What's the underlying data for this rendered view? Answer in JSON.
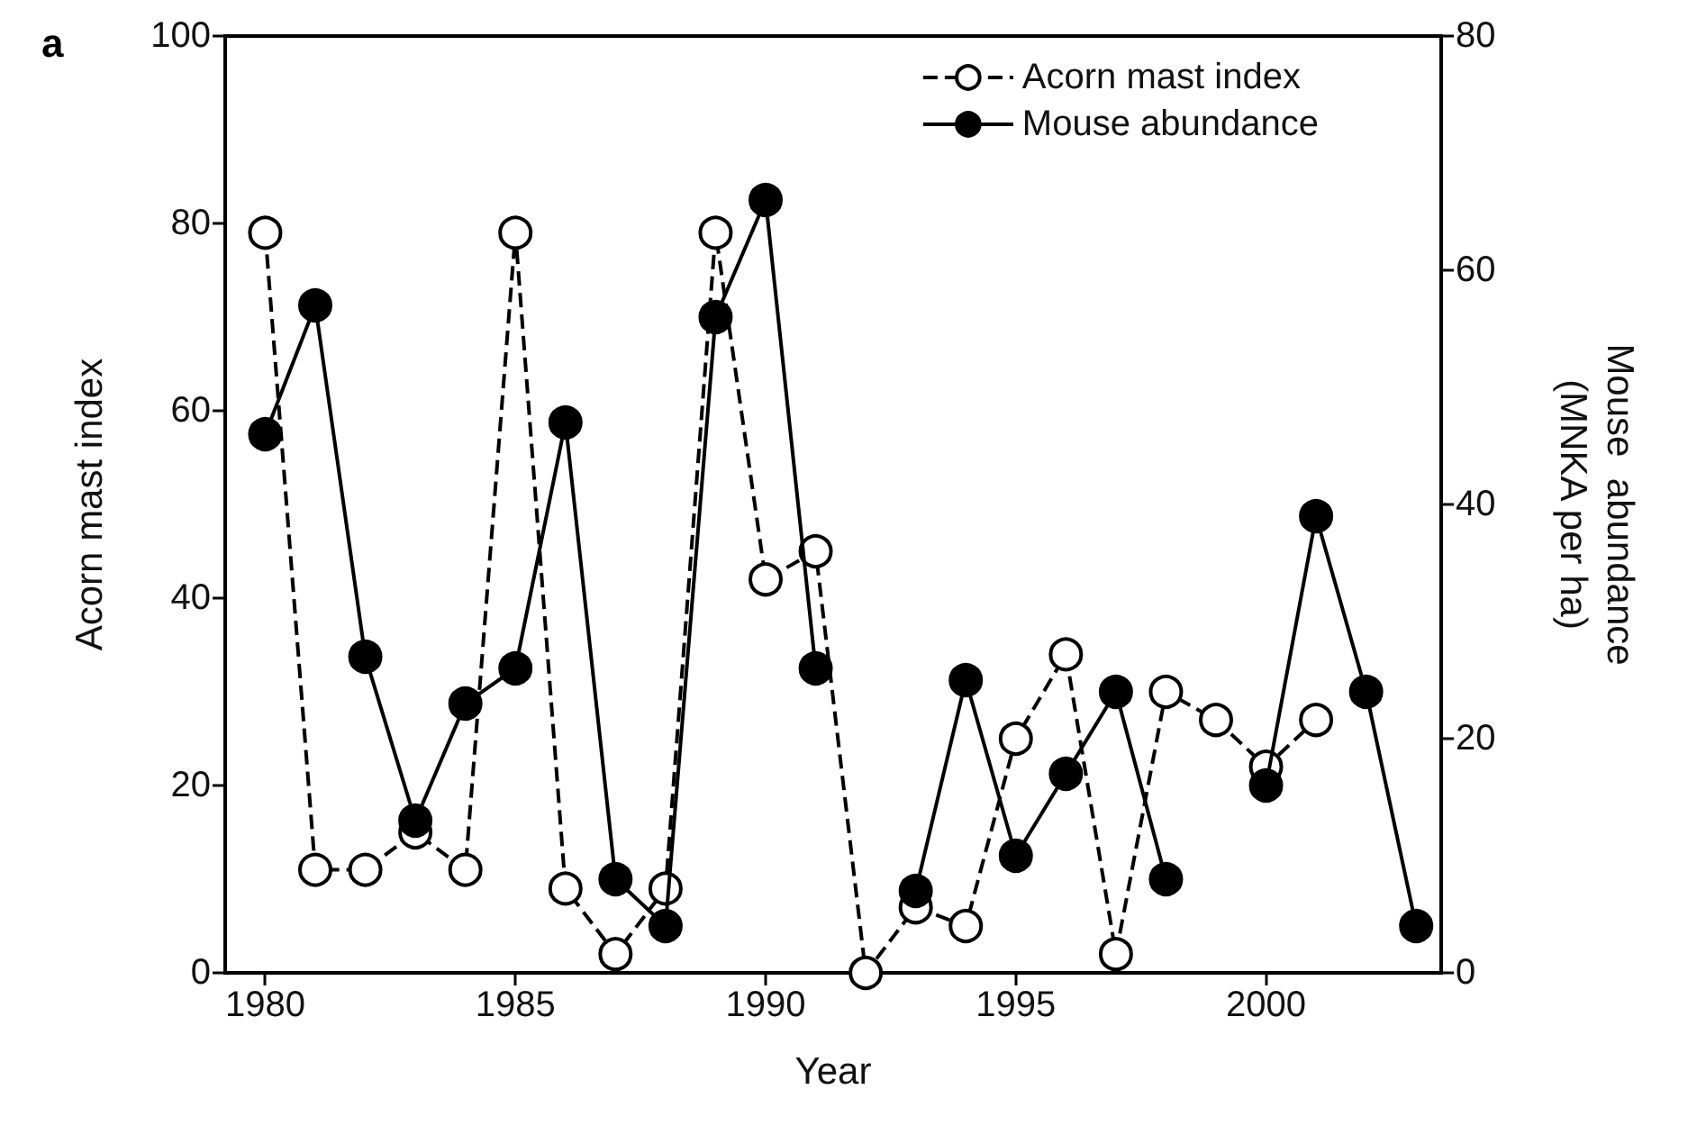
{
  "chart_data": {
    "type": "line",
    "title": "a",
    "xlabel": "Year",
    "ylabel": "Acorn mast index",
    "y2label": "Mouse  abundance\n(MNKA per ha)",
    "xlim": [
      1979.2,
      2003.5
    ],
    "xticks": [
      1980,
      1985,
      1990,
      1995,
      2000
    ],
    "ylim": [
      0,
      100
    ],
    "yticks": [
      0,
      20,
      40,
      60,
      80,
      100
    ],
    "y2lim": [
      0,
      80
    ],
    "y2ticks": [
      0,
      20,
      40,
      60,
      80
    ],
    "grid": false,
    "legend": "top right",
    "marker": "circle",
    "series": [
      {
        "name": "Acorn mast index",
        "color": "#000000",
        "line_style": "dashed",
        "x": [
          1980,
          1981,
          1982,
          1983,
          1984,
          1985,
          1986,
          1987,
          1988,
          1989,
          1990,
          1991,
          1992,
          1993,
          1994,
          1995,
          1996,
          1997,
          1998,
          1999,
          2000,
          2001
        ],
        "values": [
          79,
          11,
          11,
          15,
          11,
          79,
          9,
          2,
          9,
          79,
          42,
          45,
          0,
          7,
          5,
          25,
          34,
          2,
          30,
          27,
          22,
          27
        ]
      },
      {
        "name": "Mouse abundance",
        "color": "#000000",
        "line_style": "solid",
        "axis": "y2",
        "x": [
          1980,
          1981,
          1982,
          1983,
          1984,
          1985,
          1986,
          1987,
          1988,
          1989,
          1990,
          1991,
          1992,
          1993,
          1994,
          1995,
          1996,
          1997,
          1998,
          1999,
          2000,
          2001,
          2002,
          2003
        ],
        "values": [
          46,
          57,
          27,
          13,
          23,
          26,
          47,
          8,
          4,
          56,
          66,
          26,
          null,
          7,
          25,
          10,
          17,
          24,
          8,
          null,
          16,
          39,
          24,
          4
        ]
      }
    ]
  }
}
